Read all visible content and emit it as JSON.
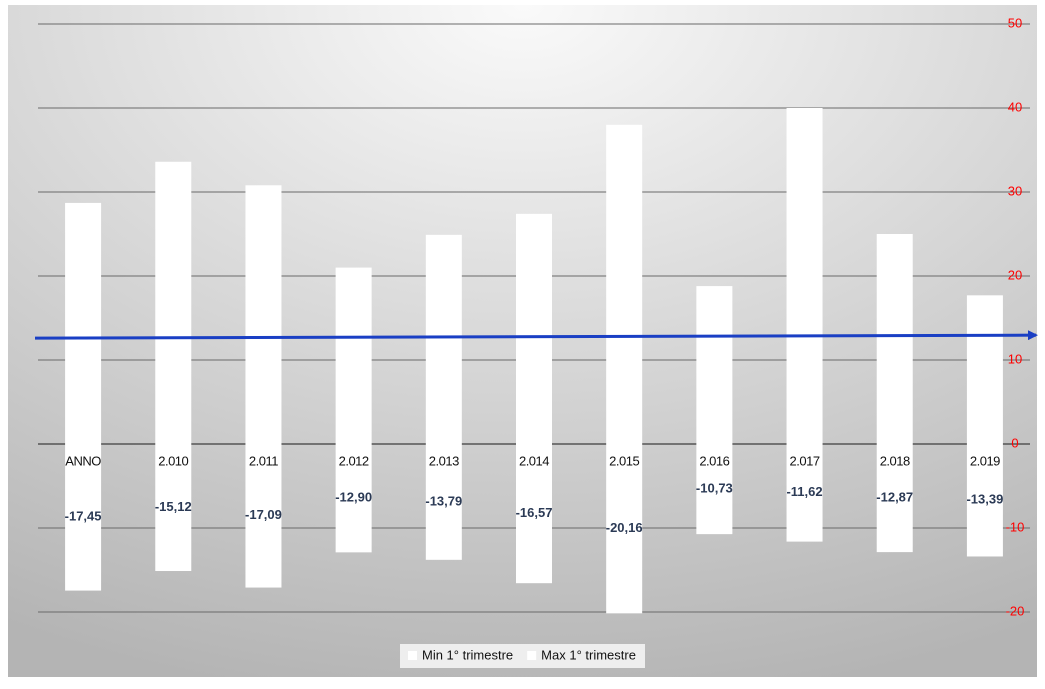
{
  "chart_data": {
    "type": "bar",
    "categories": [
      "ANNO",
      "2.010",
      "2.011",
      "2.012",
      "2.013",
      "2.014",
      "2.015",
      "2.016",
      "2.017",
      "2.018",
      "2.019"
    ],
    "series": [
      {
        "name": "Min 1° trimestre",
        "color": "#ffffff",
        "values": [
          -17.45,
          -15.12,
          -17.09,
          -12.9,
          -13.79,
          -16.57,
          -20.16,
          -10.73,
          -11.62,
          -12.87,
          -13.39
        ],
        "value_labels": [
          "-17,45",
          "-15,12",
          "-17,09",
          "-12,90",
          "-13,79",
          "-16,57",
          "-20,16",
          "-10,73",
          "-11,62",
          "-12,87",
          "-13,39"
        ]
      },
      {
        "name": "Max 1° trimestre",
        "color": "#ffffff",
        "values": [
          28.7,
          33.6,
          30.8,
          21.0,
          24.9,
          27.4,
          38.0,
          18.8,
          40.0,
          25.0,
          17.7
        ]
      }
    ],
    "ylim": [
      -20,
      50
    ],
    "yticks": [
      -20,
      -10,
      0,
      10,
      20,
      30,
      40,
      50
    ],
    "grid": true,
    "axis_color": "#ff0000",
    "reference_line": {
      "value": 12.6,
      "color": "#1a3fc4"
    },
    "legend": "bottom"
  }
}
